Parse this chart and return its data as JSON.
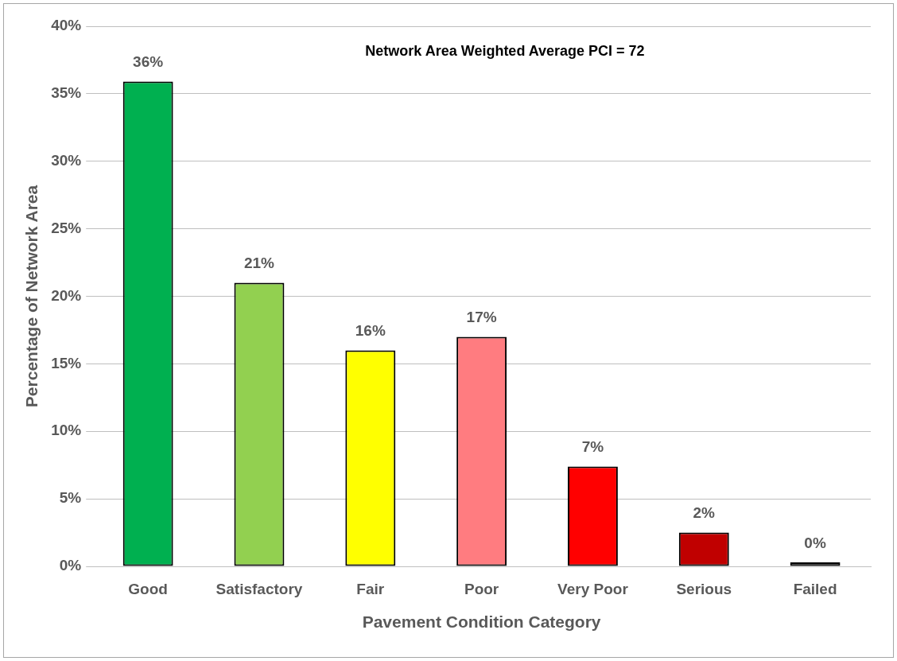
{
  "chart_data": {
    "type": "bar",
    "xlabel": "Pavement Condition Category",
    "ylabel": "Percentage of Network Area",
    "categories": [
      "Good",
      "Satisfactory",
      "Fair",
      "Poor",
      "Very Poor",
      "Serious",
      "Failed"
    ],
    "values": [
      35.9,
      21,
      16,
      17,
      7.4,
      2.5,
      0.3
    ],
    "colors": [
      "#00b050",
      "#92d050",
      "#ffff00",
      "#ff7c80",
      "#ff0000",
      "#c00000",
      "#404040"
    ],
    "value_labels": [
      "36%",
      "21%",
      "16%",
      "17%",
      "7%",
      "2%",
      "0%"
    ],
    "ylim": [
      0,
      40
    ],
    "yticks": [
      {
        "value": 0,
        "label": "0%"
      },
      {
        "value": 5,
        "label": "5%"
      },
      {
        "value": 10,
        "label": "10%"
      },
      {
        "value": 15,
        "label": "15%"
      },
      {
        "value": 20,
        "label": "20%"
      },
      {
        "value": 25,
        "label": "25%"
      },
      {
        "value": 30,
        "label": "30%"
      },
      {
        "value": 35,
        "label": "35%"
      },
      {
        "value": 40,
        "label": "40%"
      }
    ],
    "grid": "y",
    "legend": false,
    "annotations": [
      "Network Area Weighted Average PCI = 72"
    ]
  }
}
